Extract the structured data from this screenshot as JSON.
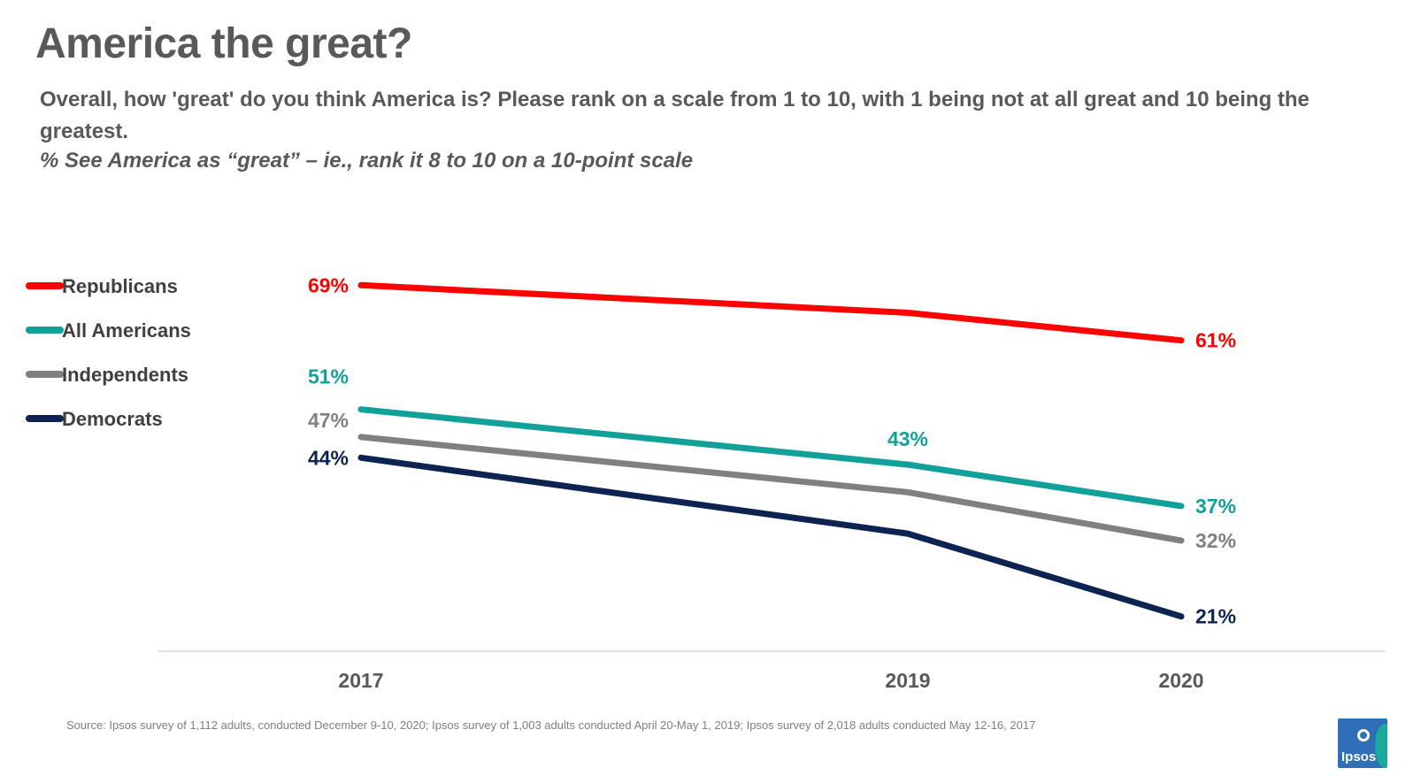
{
  "header": {
    "title": "America the great?",
    "question": "Overall, how 'great' do you think America is? Please rank on a scale from 1 to 10, with 1 being not at all great and 10 being the greatest.",
    "subquestion": "% See America as “great” – ie., rank it 8 to 10 on a 10-point scale"
  },
  "chart_data": {
    "type": "line",
    "title": "America the great?",
    "categories": [
      "2017",
      "2019",
      "2020"
    ],
    "x": [
      2017,
      2019,
      2020
    ],
    "ylabel": "",
    "xlabel": "",
    "ylim": [
      0,
      100
    ],
    "legend_position": "left",
    "series": [
      {
        "name": "Republicans",
        "color": "#ff0000",
        "values": [
          69,
          65,
          61
        ],
        "labels": [
          "69%",
          null,
          "61%"
        ],
        "label_color": "#ff0000"
      },
      {
        "name": "All Americans",
        "color": "#12a09a",
        "values": [
          51,
          43,
          37
        ],
        "labels": [
          "51%",
          "43%",
          "37%"
        ],
        "label_color": "#12a09a"
      },
      {
        "name": "Independents",
        "color": "#808080",
        "values": [
          47,
          39,
          32
        ],
        "labels": [
          "47%",
          null,
          "32%"
        ],
        "label_color": "#808080"
      },
      {
        "name": "Democrats",
        "color": "#0d2352",
        "values": [
          44,
          33,
          21
        ],
        "labels": [
          "44%",
          null,
          "21%"
        ],
        "label_color": "#0d2352"
      }
    ]
  },
  "footer": {
    "source": "Source: Ipsos survey of  1,112 adults, conducted December 9-10, 2020; Ipsos survey of 1,003 adults conducted April 20-May 1, 2019; Ipsos survey of 2,018 adults conducted May 12-16, 2017",
    "logo_text": "Ipsos"
  }
}
